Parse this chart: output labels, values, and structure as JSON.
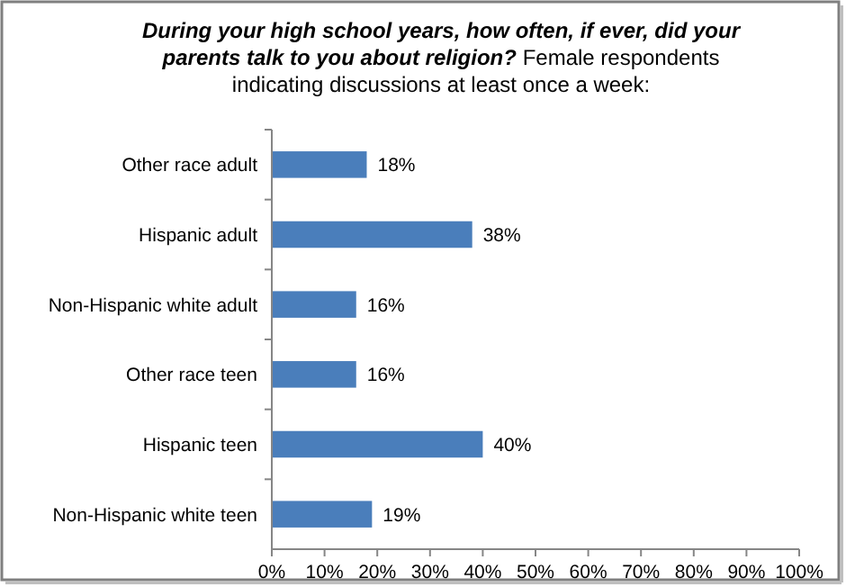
{
  "chart_data": {
    "type": "bar",
    "orientation": "horizontal",
    "title": "During your high school years, how often, if ever, did your parents talk to you about religion?",
    "subtitle": "Female respondents indicating discussions at least once a week:",
    "categories": [
      "Other race adult",
      "Hispanic adult",
      "Non-Hispanic white adult",
      "Other race teen",
      "Hispanic teen",
      "Non-Hispanic white teen"
    ],
    "values": [
      18,
      38,
      16,
      16,
      40,
      19
    ],
    "color": "#4a7ebb",
    "value_labels": [
      "18%",
      "38%",
      "16%",
      "16%",
      "40%",
      "19%"
    ],
    "xlim": [
      0,
      100
    ],
    "xticks": [
      {
        "value": 0,
        "label": "0%"
      },
      {
        "value": 10,
        "label": "10%"
      },
      {
        "value": 20,
        "label": "20%"
      },
      {
        "value": 30,
        "label": "30%"
      },
      {
        "value": 40,
        "label": "40%"
      },
      {
        "value": 50,
        "label": "50%"
      },
      {
        "value": 60,
        "label": "60%"
      },
      {
        "value": 70,
        "label": "70%"
      },
      {
        "value": 80,
        "label": "80%"
      },
      {
        "value": 90,
        "label": "90%"
      },
      {
        "value": 100,
        "label": "100%"
      }
    ],
    "grid": false
  }
}
